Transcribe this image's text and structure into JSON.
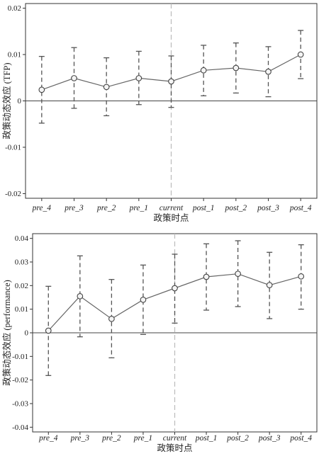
{
  "chart_data": [
    {
      "type": "line",
      "categories": [
        "pre_4",
        "pre_3",
        "pre_2",
        "pre_1",
        "current",
        "post_1",
        "post_2",
        "post_3",
        "post_4"
      ],
      "values": [
        0.0024,
        0.0049,
        0.003,
        0.0049,
        0.0042,
        0.0066,
        0.0071,
        0.0063,
        0.01
      ],
      "ci_lower": [
        -0.0048,
        -0.0016,
        -0.0032,
        -0.0008,
        -0.0014,
        0.0011,
        0.0017,
        0.0009,
        0.0048
      ],
      "ci_upper": [
        0.0096,
        0.0115,
        0.0093,
        0.0107,
        0.0097,
        0.012,
        0.0125,
        0.0117,
        0.0152
      ],
      "xlabel": "政策时点",
      "ylabel": "政策动态效应 (TFP)",
      "ylim": [
        -0.021,
        0.021
      ],
      "yticks": [
        -0.02,
        -0.01,
        0,
        0.01,
        0.02
      ],
      "ytick_labels": [
        "-0.02",
        "-0.01",
        "0",
        "0.01",
        "0.02"
      ],
      "event_line_category": "current",
      "reference_line": 0,
      "grid": false
    },
    {
      "type": "line",
      "categories": [
        "pre_4",
        "pre_3",
        "pre_2",
        "pre_1",
        "current",
        "post_1",
        "post_2",
        "post_3",
        "post_4"
      ],
      "values": [
        0.0009,
        0.0155,
        0.0059,
        0.014,
        0.0189,
        0.0237,
        0.025,
        0.0202,
        0.0239
      ],
      "ci_lower": [
        -0.0181,
        -0.0017,
        -0.0106,
        -0.0007,
        0.0041,
        0.0096,
        0.0111,
        0.006,
        0.01
      ],
      "ci_upper": [
        0.0197,
        0.0326,
        0.0226,
        0.0287,
        0.0333,
        0.0377,
        0.039,
        0.0341,
        0.0373
      ],
      "xlabel": "政策时点",
      "ylabel": "政策动态效应 (performance)",
      "ylim": [
        -0.042,
        0.042
      ],
      "yticks": [
        -0.04,
        -0.03,
        -0.02,
        -0.01,
        0,
        0.01,
        0.02,
        0.03,
        0.04
      ],
      "ytick_labels": [
        "-0.04",
        "-0.03",
        "-0.02",
        "-0.01",
        "0",
        "0.01",
        "0.02",
        "0.03",
        "0.04"
      ],
      "event_line_category": "current",
      "reference_line": 0,
      "grid": false
    }
  ]
}
